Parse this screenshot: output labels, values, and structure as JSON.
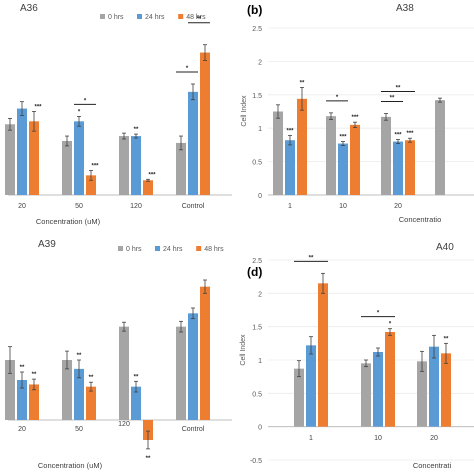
{
  "colors": {
    "s0": "#a5a5a5",
    "s1": "#5b9bd5",
    "s2": "#ed7d31",
    "axis": "#bfbfbf",
    "text": "#595959",
    "err": "#404040"
  },
  "chart_data": [
    {
      "id": "A36",
      "type": "bar",
      "panel_label": "",
      "title": "A36",
      "legend_position": "top",
      "categories": [
        "20",
        "50",
        "120",
        "Control"
      ],
      "xlabel": "Concentration (uM)",
      "ylabel": "",
      "series": [
        {
          "name": "0 hrs",
          "values": [
            0.72,
            0.55,
            0.6,
            0.53
          ],
          "errors": [
            0.06,
            0.05,
            0.03,
            0.07
          ]
        },
        {
          "name": "24 hrs",
          "values": [
            0.88,
            0.75,
            0.6,
            1.05
          ],
          "errors": [
            0.07,
            0.05,
            0.02,
            0.08
          ]
        },
        {
          "name": "48 hrs",
          "values": [
            0.75,
            0.2,
            0.15,
            1.45
          ],
          "errors": [
            0.1,
            0.05,
            0.01,
            0.08
          ]
        }
      ],
      "ylim": [
        0,
        1.7
      ],
      "annotations": [
        {
          "text": "***",
          "category": 0,
          "series": 2
        },
        {
          "text": "*",
          "category": 1,
          "series": 1
        },
        {
          "text": "***",
          "category": 1,
          "series": 2
        },
        {
          "text": "**",
          "category": 2,
          "series": 1
        },
        {
          "text": "***",
          "category": 2,
          "series": 2
        }
      ],
      "brackets": [
        {
          "text": "*",
          "category": 1,
          "from": 1,
          "to": 2
        },
        {
          "text": "*",
          "category": 3,
          "from": 0,
          "to": 1
        },
        {
          "text": "**",
          "category": 3,
          "from": 1,
          "to": 2
        }
      ]
    },
    {
      "id": "A38",
      "type": "bar",
      "panel_label": "(b)",
      "title": "A38",
      "legend_position": "none",
      "categories": [
        "1",
        "10",
        "20",
        ""
      ],
      "xlabel": "Concentratio",
      "ylabel": "Cell Index",
      "yticks": [
        "0",
        "0.5",
        "1",
        "1.5",
        "2",
        "2.5"
      ],
      "series": [
        {
          "name": "",
          "values": [
            1.25,
            1.18,
            1.17,
            1.42
          ],
          "errors": [
            0.1,
            0.05,
            0.05,
            0.03
          ]
        },
        {
          "name": "",
          "values": [
            0.82,
            0.77,
            0.8,
            0
          ],
          "errors": [
            0.07,
            0.03,
            0.03,
            0
          ]
        },
        {
          "name": "",
          "values": [
            1.44,
            1.05,
            0.82,
            0
          ],
          "errors": [
            0.17,
            0.04,
            0.03,
            0
          ]
        }
      ],
      "ylim": [
        0,
        2.5
      ],
      "annotations": [
        {
          "text": "***",
          "category": 0,
          "series": 1
        },
        {
          "text": "**",
          "category": 0,
          "series": 2
        },
        {
          "text": "***",
          "category": 1,
          "series": 1
        },
        {
          "text": "***",
          "category": 1,
          "series": 2
        },
        {
          "text": "***",
          "category": 2,
          "series": 1
        },
        {
          "text": "***",
          "category": 2,
          "series": 2
        }
      ],
      "brackets": [
        {
          "text": "*",
          "category": 1,
          "from": 0,
          "to": 1
        },
        {
          "text": "**",
          "category": 2,
          "from": 0,
          "to": 1
        },
        {
          "text": "**",
          "category": 2,
          "from": 0,
          "to": 2
        }
      ]
    },
    {
      "id": "A39",
      "type": "bar",
      "panel_label": "",
      "title": "A39",
      "legend_position": "top",
      "categories": [
        "20",
        "50",
        "120",
        "Control"
      ],
      "xlabel": "Concentration (uM)",
      "ylabel": "",
      "series": [
        {
          "name": "0 hrs",
          "values": [
            1.35,
            1.35,
            2.1,
            2.1
          ],
          "errors": [
            0.3,
            0.2,
            0.1,
            0.12
          ]
        },
        {
          "name": "24 hrs",
          "values": [
            0.9,
            1.15,
            0.75,
            2.4
          ],
          "errors": [
            0.18,
            0.2,
            0.12,
            0.12
          ]
        },
        {
          "name": "48 hrs",
          "values": [
            0.8,
            0.75,
            -0.45,
            3.0
          ],
          "errors": [
            0.12,
            0.1,
            0.2,
            0.15
          ]
        }
      ],
      "ylim": [
        -0.9,
        3.6
      ],
      "annotations": [
        {
          "text": "**",
          "category": 0,
          "series": 1
        },
        {
          "text": "**",
          "category": 0,
          "series": 2
        },
        {
          "text": "**",
          "category": 1,
          "series": 1
        },
        {
          "text": "**",
          "category": 1,
          "series": 2
        },
        {
          "text": "**",
          "category": 2,
          "series": 1
        },
        {
          "text": "**",
          "category": 2,
          "series": 2
        }
      ],
      "brackets": []
    },
    {
      "id": "A40",
      "type": "bar",
      "panel_label": "(d)",
      "title": "A40",
      "legend_position": "none",
      "categories": [
        "1",
        "10",
        "20"
      ],
      "xlabel": "Concentrati",
      "ylabel": "Cell Index",
      "yticks": [
        "-0.5",
        "0",
        "0.5",
        "1",
        "1.5",
        "2",
        "2.5"
      ],
      "series": [
        {
          "name": "",
          "values": [
            0.87,
            0.95,
            0.98
          ],
          "errors": [
            0.12,
            0.05,
            0.15
          ]
        },
        {
          "name": "",
          "values": [
            1.22,
            1.12,
            1.2
          ],
          "errors": [
            0.13,
            0.06,
            0.17
          ]
        },
        {
          "name": "",
          "values": [
            2.15,
            1.42,
            1.1
          ],
          "errors": [
            0.15,
            0.05,
            0.15
          ]
        }
      ],
      "ylim": [
        -0.5,
        2.5
      ],
      "annotations": [
        {
          "text": "*",
          "category": 1,
          "series": 2
        },
        {
          "text": "**",
          "category": 2,
          "series": 2
        }
      ],
      "brackets": [
        {
          "text": "**",
          "category": 0,
          "from": 0,
          "to": 2
        },
        {
          "text": "*",
          "category": 1,
          "from": 0,
          "to": 2
        }
      ]
    }
  ]
}
